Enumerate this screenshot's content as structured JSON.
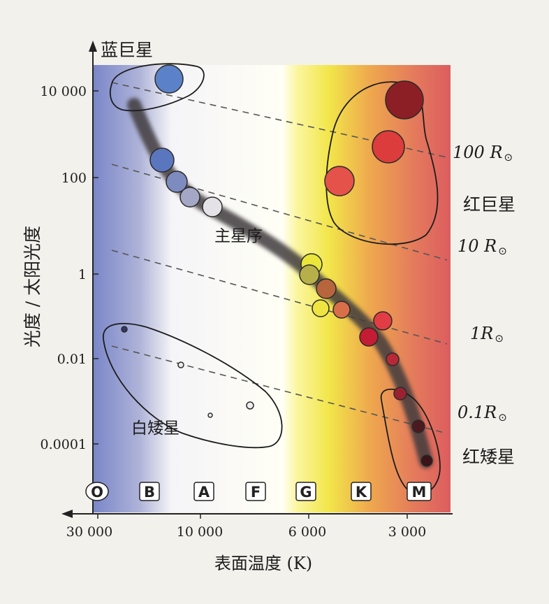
{
  "y_axis": {
    "label": "光度 / 太阳光度",
    "top_label": "蓝巨星",
    "ticks": [
      "10 000",
      "100",
      "1",
      "0.01",
      "0.0001"
    ]
  },
  "x_axis": {
    "title": "表面温度 (K)",
    "ticks": [
      "30 000",
      "10 000",
      "6 000",
      "3 000"
    ]
  },
  "spectral_classes": [
    "O",
    "B",
    "A",
    "F",
    "G",
    "K",
    "M"
  ],
  "radius_lines": [
    {
      "label": "100 R",
      "symbol": "⊙"
    },
    {
      "label": "10 R",
      "symbol": "⊙"
    },
    {
      "label": "1R",
      "symbol": "⊙"
    },
    {
      "label": "0.1R",
      "symbol": "⊙"
    }
  ],
  "regions": {
    "main_sequence": "主星序",
    "red_giants": "红巨星",
    "white_dwarfs": "白矮星",
    "red_dwarfs": "红矮星"
  },
  "colors": {
    "blue_edge": "#7a86c8",
    "white_mid": "#ffffff",
    "yellow": "#f2e64a",
    "orange": "#eea64e",
    "red_edge": "#dc5d5f",
    "band": "#3f3b3d"
  }
}
